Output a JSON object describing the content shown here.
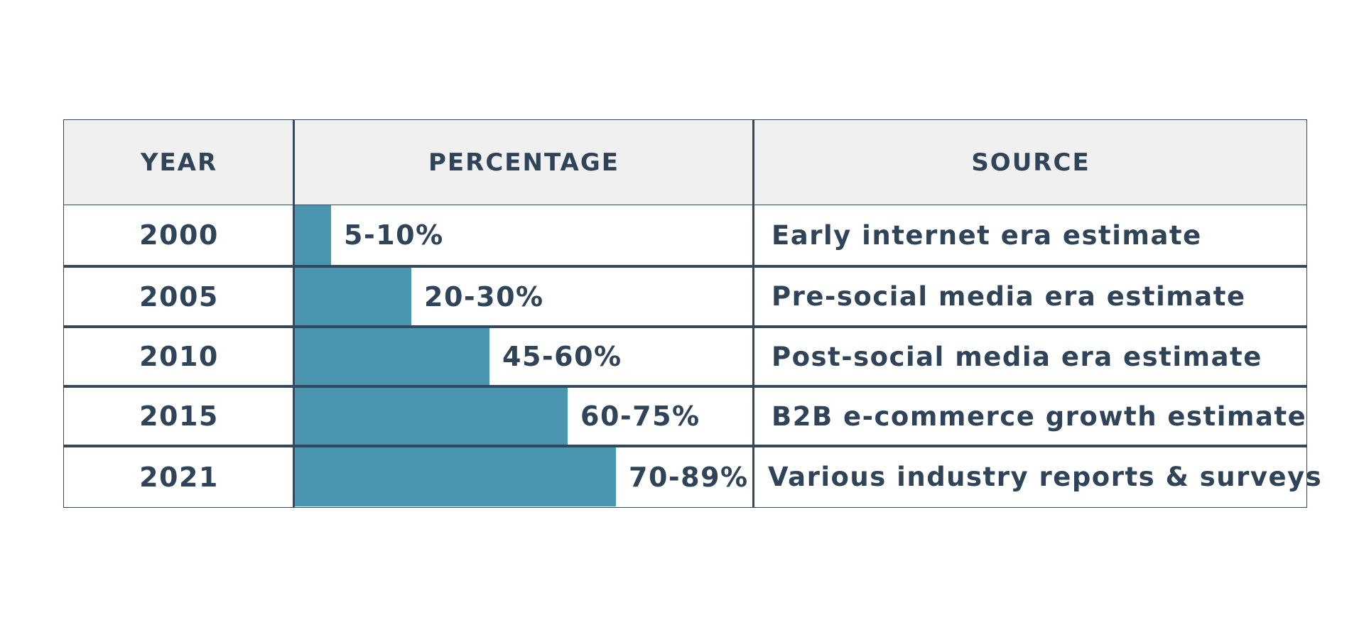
{
  "header": {
    "year": "YEAR",
    "percentage": "PERCENTAGE",
    "source": "SOURCE"
  },
  "colors": {
    "bar": "#4a95b0",
    "text": "#2f4359",
    "border": "#34495e",
    "header_bg": "#f0f0f0"
  },
  "chart_data": {
    "type": "table",
    "columns": [
      "YEAR",
      "PERCENTAGE",
      "SOURCE"
    ],
    "rows": [
      {
        "year": "2000",
        "percentage": "5-10%",
        "source": "Early internet era estimate",
        "bar_fill": 0.08
      },
      {
        "year": "2005",
        "percentage": "20-30%",
        "source": "Pre-social media era estimate",
        "bar_fill": 0.255
      },
      {
        "year": "2010",
        "percentage": "45-60%",
        "source": "Post-social media era estimate",
        "bar_fill": 0.425
      },
      {
        "year": "2015",
        "percentage": "60-75%",
        "source": "B2B e-commerce growth estimate",
        "bar_fill": 0.595
      },
      {
        "year": "2021",
        "percentage": "70-89%",
        "source": "Various industry reports & surveys",
        "bar_fill": 0.7
      }
    ]
  }
}
